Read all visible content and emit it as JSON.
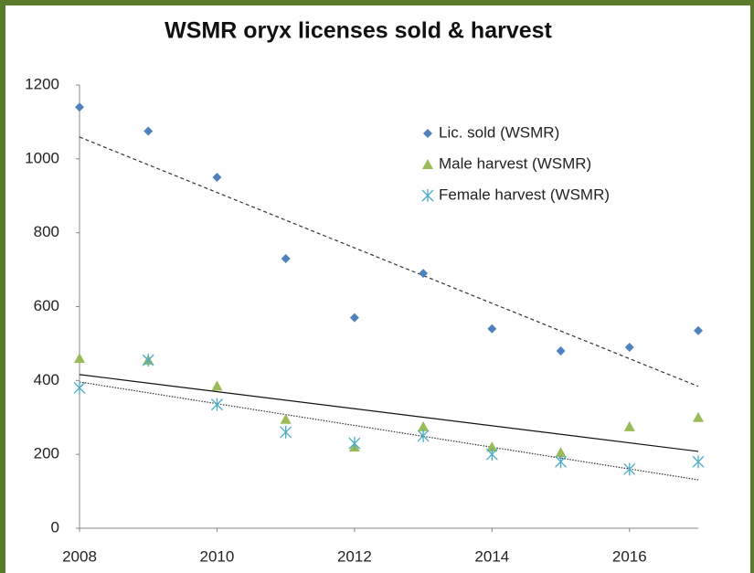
{
  "chart_data": {
    "type": "scatter",
    "title": "WSMR oryx licenses sold & harvest",
    "x": [
      2008,
      2009,
      2010,
      2011,
      2012,
      2013,
      2014,
      2015,
      2016,
      2017
    ],
    "series": [
      {
        "name": "Lic. sold (WSMR)",
        "color": "#4f81bd",
        "marker": "diamond",
        "values": [
          1140,
          1075,
          950,
          730,
          570,
          690,
          540,
          480,
          490,
          535
        ],
        "trend": [
          1059,
          384
        ],
        "trend_style": "dashed"
      },
      {
        "name": "Male harvest (WSMR)",
        "color": "#9bbb59",
        "marker": "triangle",
        "values": [
          460,
          455,
          385,
          295,
          220,
          275,
          220,
          205,
          275,
          300
        ],
        "trend": [
          416,
          208
        ],
        "trend_style": "solid"
      },
      {
        "name": "Female harvest (WSMR)",
        "color": "#4bacc6",
        "marker": "asterisk",
        "values": [
          380,
          455,
          335,
          260,
          230,
          250,
          200,
          180,
          160,
          180
        ],
        "trend": [
          396,
          131
        ],
        "trend_style": "dotted"
      }
    ],
    "xlim": [
      2008,
      2017
    ],
    "xticks": [
      2008,
      2010,
      2012,
      2014,
      2016
    ],
    "ylim": [
      0,
      1200
    ],
    "yticks": [
      0,
      200,
      400,
      600,
      800,
      1000,
      1200
    ],
    "grid": false,
    "legend": "upper right"
  }
}
